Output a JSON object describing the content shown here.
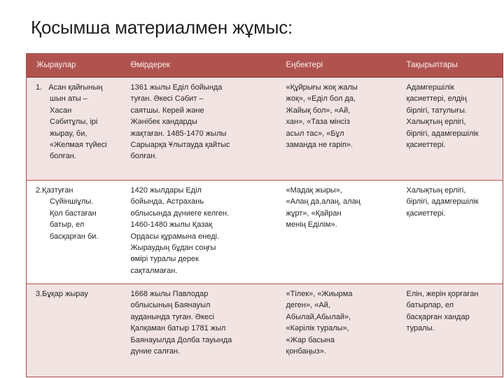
{
  "slide": {
    "title": "Қосымша материалмен жұмыс:",
    "colors": {
      "header_bg": "#b0534f",
      "header_text": "#f9efee",
      "band_pink": "#f2e4e2",
      "band_white": "#ffffff",
      "outer_border": "#a84d49",
      "row_divider": "#c0504d",
      "header_divider": "#9a4440",
      "title_text": "#1f1f1f",
      "body_text": "#262626",
      "background": "#ffffff"
    }
  },
  "table": {
    "headers": [
      "Жыраулар",
      "Өмірдерек",
      "Еңбектері",
      "Тақырыптары"
    ],
    "rows": [
      {
        "cells": [
          "1.   Асан қайғының\nшын аты –\nХасан\nСәбитұлы, ірі\nжырау, би,\n«Желмая түйесі\nболған.",
          "1361 жылы Еділ бойында\nтуған. Әкесі Сәбит –\nсаятшы. Керей және\nЖәнібек хандарды\nжақтаған. 1485-1470 жылы\nСарыарқа Ұлытауда қайтыс\nболған.",
          "«Құйрығы жоқ жалы\nжоқ», «Еділ бол да,\nЖайық бол», «Ай,\nхан», «Таза мінсіз\nасыл тас», «Бұл\nзаманда не ғаріп».",
          "Адамгершілік\nқасиеттері, елдің\nбірлігі, татулығы.\nХалықтың ерлігі,\nбірлігі, адамгершілік\nқасиеттері."
        ]
      },
      {
        "cells": [
          "2.Қазтуған\nСүйіншіұлы.\nҚол бастаған\nбатыр, ел\nбасқарған би.",
          "1420 жылдары Еділ\nбойында, Астрахань\nоблысында дүниеге келген.\n1460-1480 жылы Қазақ\nОрдасы құрамына енеді.\nЖыраудың бұдан соңғы\nөмірі туралы дерек\nсақталмаған.",
          "«Мадақ жыры»,\n«Алаң да,алаң, алаң\nжұрт», «Қайран\nменің Еділім».",
          "Халықтың ерлігі,\nбірлігі, адамгершілік\nқасиеттері."
        ]
      },
      {
        "cells": [
          "3.Бұқар жырау",
          "1668 жылы Павлодар\nоблысының Баянауыл\nауданында туған. Әкесі\nҚалқаман батыр 1781 жыл\nБаянауылда Долба тауында\nдүние салған.",
          "«Тілек», «Жиырма\nдеген», «Ай,\nАбылай,Абылай»,\n«Кәрілік туралы»,\n«Жар басына\nқонбаңыз».",
          "Елін, жерін қорғаған\nбатырлар, ел\nбасқарған хандар\nтуралы."
        ]
      }
    ]
  }
}
